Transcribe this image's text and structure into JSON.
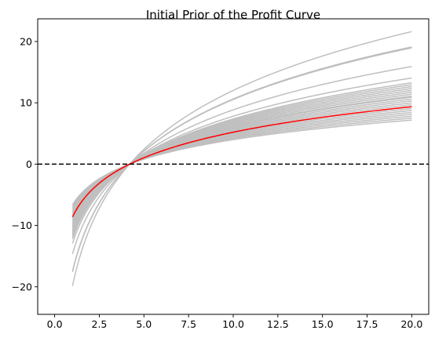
{
  "chart_data": {
    "type": "line",
    "title": "Initial Prior of the Profit Curve",
    "xlabel": "",
    "ylabel": "",
    "xlim": [
      -0.95,
      20.95
    ],
    "ylim": [
      -24.5,
      23.7
    ],
    "x_ticks": [
      0.0,
      2.5,
      5.0,
      7.5,
      10.0,
      12.5,
      15.0,
      17.5,
      20.0
    ],
    "x_tick_labels": [
      "0.0",
      "2.5",
      "5.0",
      "7.5",
      "10.0",
      "12.5",
      "15.0",
      "17.5",
      "20.0"
    ],
    "y_ticks": [
      -20,
      -10,
      0,
      10,
      20
    ],
    "y_tick_labels": [
      "−20",
      "−10",
      "0",
      "10",
      "20"
    ],
    "grid": false,
    "x_range": [
      1,
      20
    ],
    "curve_form": "a * ln(x / x0)",
    "x0": 4.2,
    "prior_samples": {
      "color": "#bfbfbf",
      "a_values": [
        4.6,
        4.8,
        5.0,
        5.2,
        5.4,
        5.6,
        5.8,
        6.0,
        6.2,
        6.4,
        6.6,
        6.8,
        7.0,
        7.1,
        7.3,
        7.5,
        7.7,
        7.9,
        8.1,
        8.3,
        8.5,
        9.0,
        10.2,
        12.15,
        12.25,
        13.85
      ]
    },
    "mean_curve": {
      "color": "#ff0000",
      "a": 6.0
    },
    "reference_line": {
      "y": 0,
      "color": "#000000",
      "style": "dashed"
    }
  }
}
